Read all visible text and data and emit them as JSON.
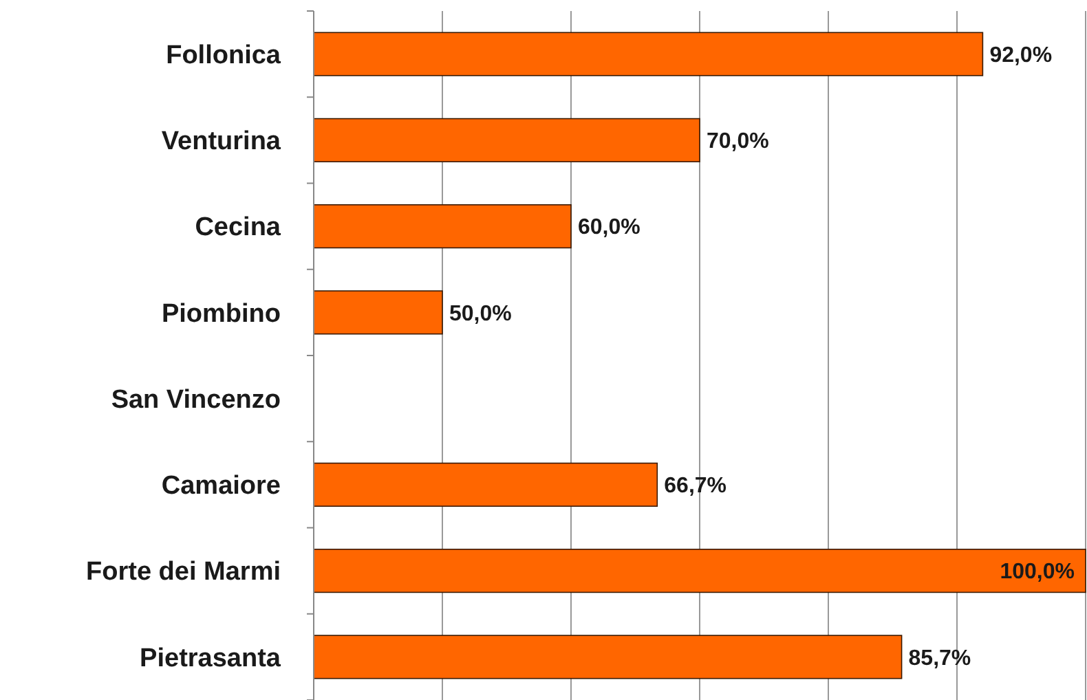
{
  "chart_data": {
    "type": "bar",
    "orientation": "horizontal",
    "categories": [
      "Follonica",
      "Venturina",
      "Cecina",
      "Piombino",
      "San Vincenzo",
      "Camaiore",
      "Forte dei Marmi",
      "Pietrasanta"
    ],
    "values": [
      92.0,
      70.0,
      60.0,
      50.0,
      null,
      66.7,
      100.0,
      85.7
    ],
    "value_labels": [
      "92,0%",
      "70,0%",
      "60,0%",
      "50,0%",
      null,
      "66,7%",
      "100,0%",
      "85,7%"
    ],
    "color": "#ff6600",
    "xlim": [
      40,
      100
    ],
    "xticks": [
      {
        "value": 40,
        "label": null
      },
      {
        "value": 50,
        "label": null
      },
      {
        "value": 60,
        "label": null
      },
      {
        "value": 70,
        "label": null
      },
      {
        "value": 80,
        "label": null
      },
      {
        "value": 90,
        "label": null
      },
      {
        "value": 100,
        "label": null
      }
    ],
    "grid": "x",
    "tick_labels": "y"
  }
}
